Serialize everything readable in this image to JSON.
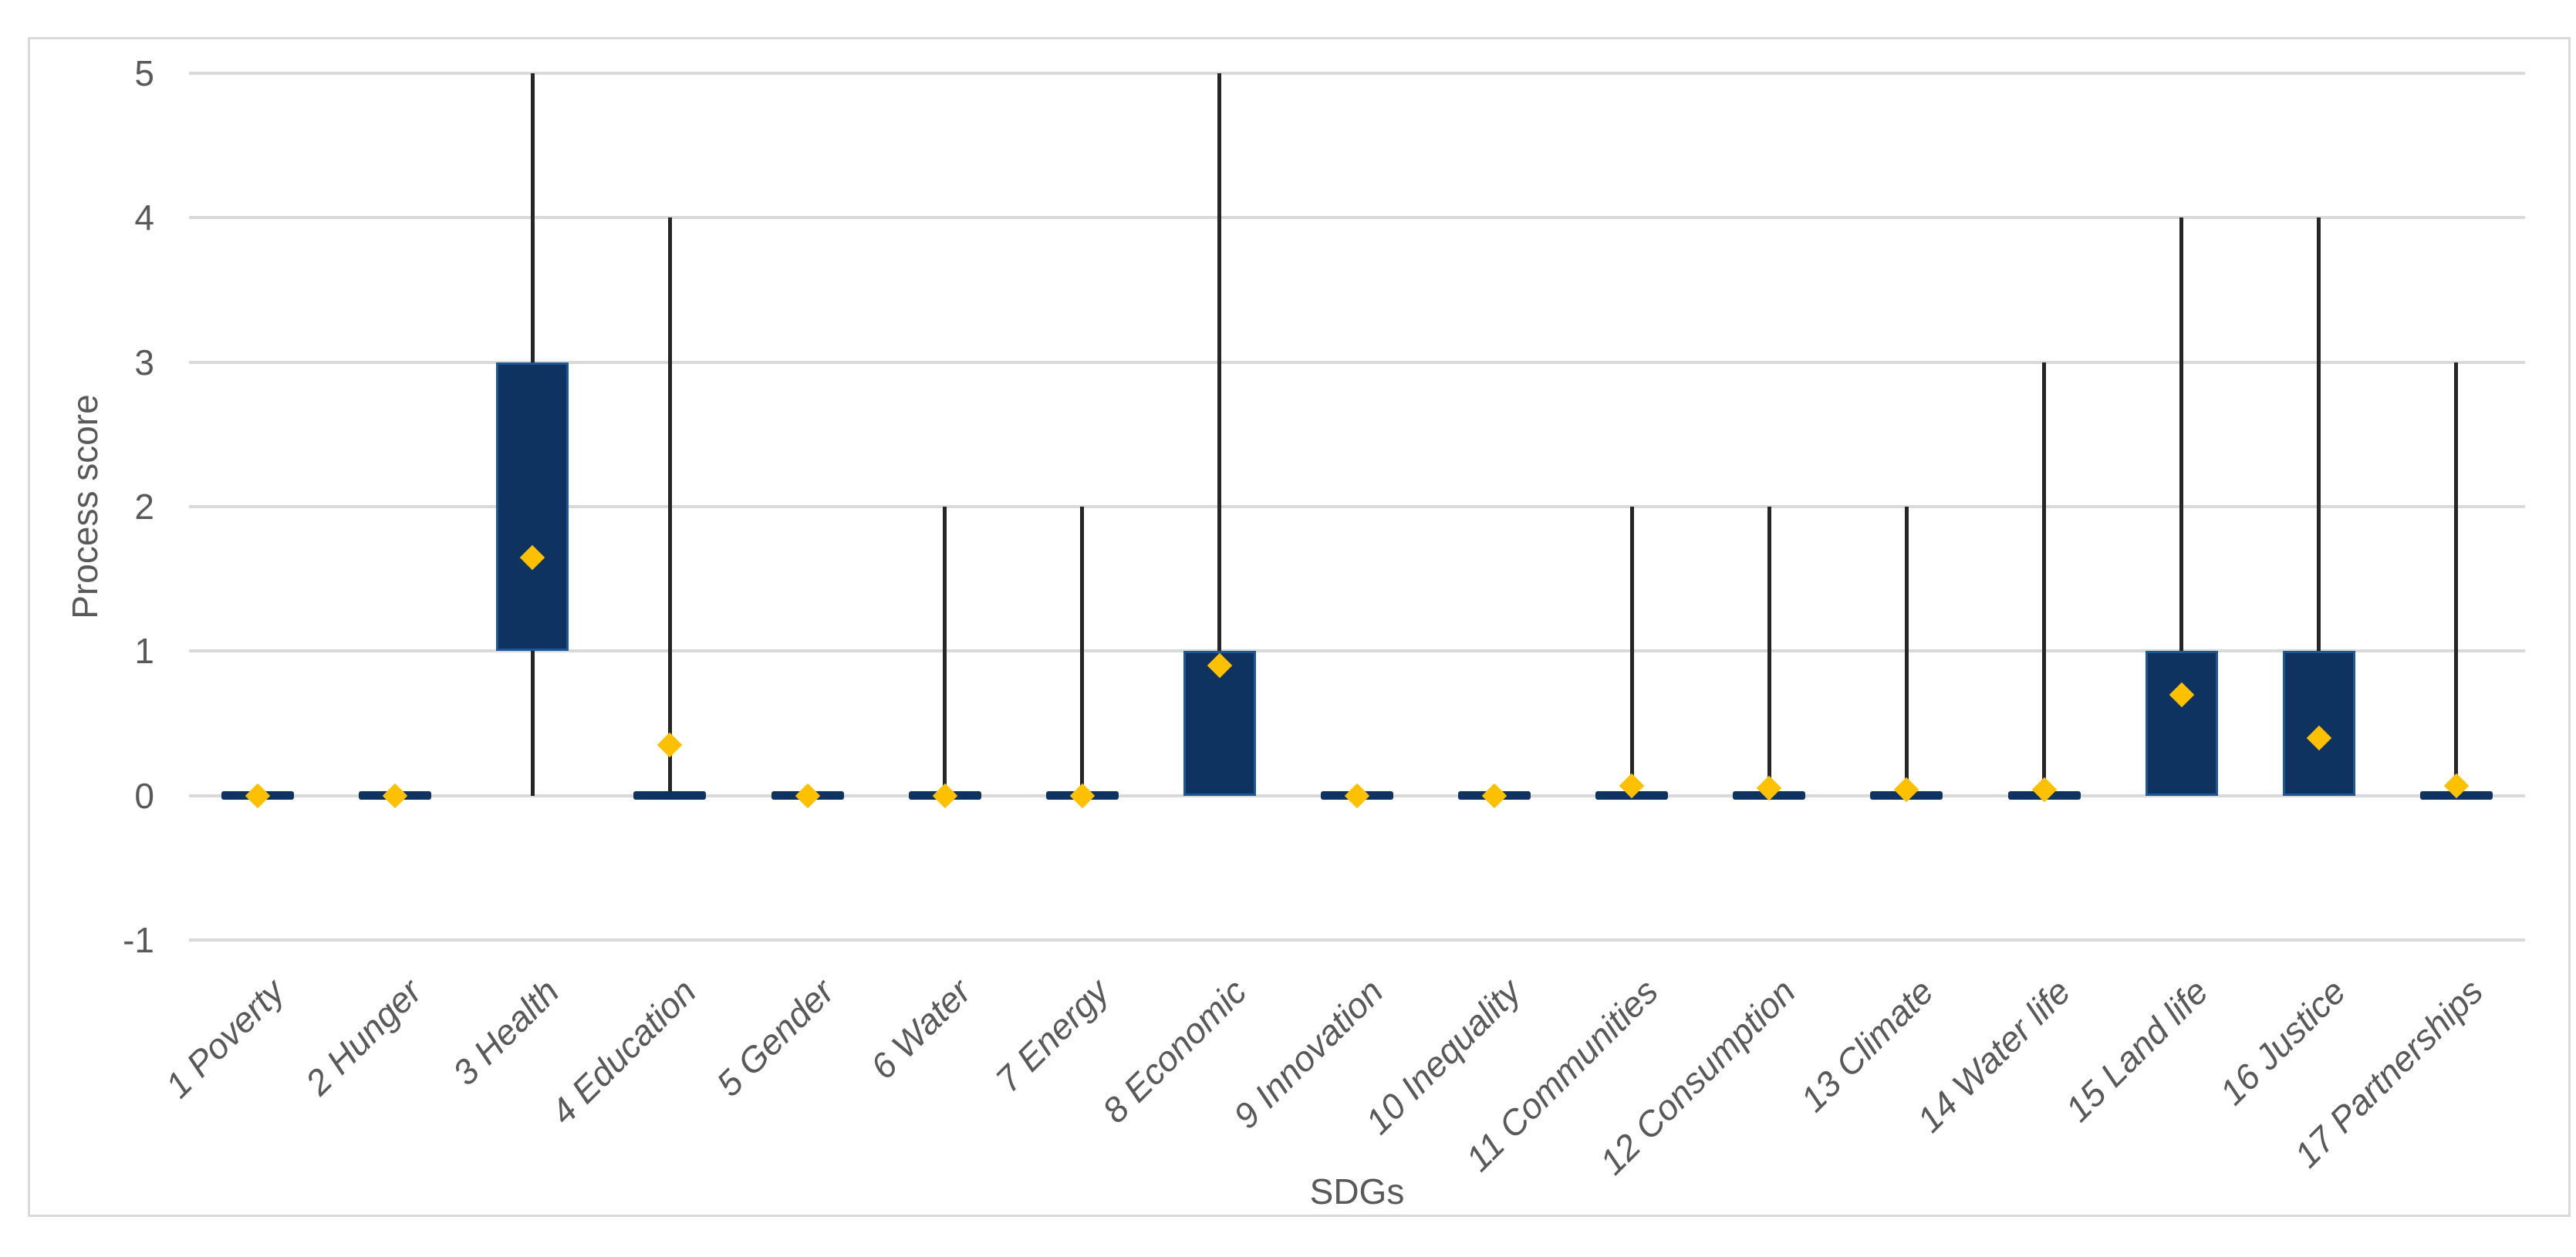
{
  "chart_data": {
    "type": "box",
    "title": "",
    "xlabel": "SDGs",
    "ylabel": "Process score",
    "ylim": [
      -1,
      5
    ],
    "yticks": [
      5,
      4,
      3,
      2,
      1,
      0,
      -1
    ],
    "grid": "horizontal",
    "legend": "none",
    "marker_meaning": "diamond = mean",
    "categories": [
      "1 Poverty",
      "2 Hunger",
      "3 Health",
      "4 Education",
      "5 Gender",
      "6 Water",
      "7 Energy",
      "8 Economic",
      "9 Innovation",
      "10 Inequality",
      "11 Communities",
      "12 Consumption",
      "13 Climate",
      "14 Water life",
      "15 Land life",
      "16 Justice",
      "17 Partnerships"
    ],
    "boxes": [
      {
        "category": "1 Poverty",
        "whisker_low": 0,
        "q1": 0,
        "q3": 0,
        "whisker_high": 0,
        "mean": 0
      },
      {
        "category": "2 Hunger",
        "whisker_low": 0,
        "q1": 0,
        "q3": 0,
        "whisker_high": 0,
        "mean": 0
      },
      {
        "category": "3 Health",
        "whisker_low": 0,
        "q1": 1,
        "q3": 3,
        "whisker_high": 5,
        "mean": 1.65
      },
      {
        "category": "4 Education",
        "whisker_low": 0,
        "q1": 0,
        "q3": 0,
        "whisker_high": 4,
        "mean": 0.35
      },
      {
        "category": "5 Gender",
        "whisker_low": 0,
        "q1": 0,
        "q3": 0,
        "whisker_high": 0,
        "mean": 0
      },
      {
        "category": "6 Water",
        "whisker_low": 0,
        "q1": 0,
        "q3": 0,
        "whisker_high": 2,
        "mean": 0
      },
      {
        "category": "7 Energy",
        "whisker_low": 0,
        "q1": 0,
        "q3": 0,
        "whisker_high": 2,
        "mean": 0
      },
      {
        "category": "8 Economic",
        "whisker_low": 0,
        "q1": 0,
        "q3": 1,
        "whisker_high": 5,
        "mean": 0.9
      },
      {
        "category": "9 Innovation",
        "whisker_low": 0,
        "q1": 0,
        "q3": 0,
        "whisker_high": 0,
        "mean": 0
      },
      {
        "category": "10 Inequality",
        "whisker_low": 0,
        "q1": 0,
        "q3": 0,
        "whisker_high": 0,
        "mean": 0
      },
      {
        "category": "11 Communities",
        "whisker_low": 0,
        "q1": 0,
        "q3": 0,
        "whisker_high": 2,
        "mean": 0.07
      },
      {
        "category": "12 Consumption",
        "whisker_low": 0,
        "q1": 0,
        "q3": 0,
        "whisker_high": 2,
        "mean": 0.05
      },
      {
        "category": "13 Climate",
        "whisker_low": 0,
        "q1": 0,
        "q3": 0,
        "whisker_high": 2,
        "mean": 0.04
      },
      {
        "category": "14 Water life",
        "whisker_low": 0,
        "q1": 0,
        "q3": 0,
        "whisker_high": 3,
        "mean": 0.04
      },
      {
        "category": "15 Land life",
        "whisker_low": 0,
        "q1": 0,
        "q3": 1,
        "whisker_high": 4,
        "mean": 0.7
      },
      {
        "category": "16 Justice",
        "whisker_low": 0,
        "q1": 0,
        "q3": 1,
        "whisker_high": 4,
        "mean": 0.4
      },
      {
        "category": "17 Partnerships",
        "whisker_low": 0,
        "q1": 0,
        "q3": 0,
        "whisker_high": 3,
        "mean": 0.07
      }
    ],
    "colors": {
      "box_fill": "#0E3361",
      "box_border": "#1D5795",
      "whisker": "#262626",
      "mean_marker": "#FFC000",
      "gridline": "#D9D9D9",
      "frame_border": "#D9D9D9",
      "tick_text": "#595959",
      "background": "#FFFFFF"
    }
  }
}
